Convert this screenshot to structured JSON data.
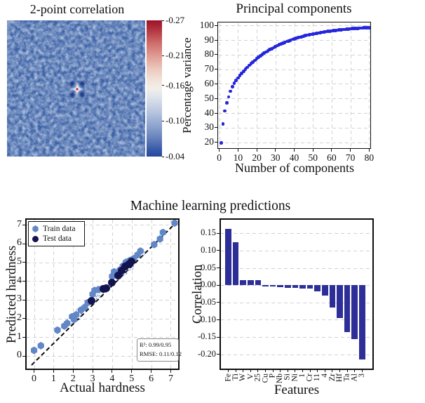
{
  "figure": {
    "titles": {
      "correlation": "2-point correlation",
      "pca": "Principal components",
      "ml": "Machine learning predictions"
    }
  },
  "heatmap": {
    "base_color": "#3e63a6",
    "center_dot_color": "#cf2b35",
    "colorbar": {
      "tick_labels": [
        "-0.27",
        "-0.21",
        "-0.16",
        "-0.10",
        "-0.04"
      ],
      "tick_positions": [
        0,
        0.26,
        0.478,
        0.739,
        1
      ],
      "top_color": "#9c1127",
      "mid_color": "#f2efe9",
      "bottom_color": "#26489c"
    }
  },
  "chart_data": [
    {
      "id": "principal-components",
      "type": "scatter",
      "title": "Principal components",
      "xlabel": "Number of components",
      "ylabel": "Percentage variance",
      "xlim": [
        -1,
        81
      ],
      "ylim": [
        15.5,
        102.5
      ],
      "xticks": [
        0,
        10,
        20,
        30,
        40,
        50,
        60,
        70,
        80
      ],
      "yticks": [
        20,
        30,
        40,
        50,
        60,
        70,
        80,
        90,
        100
      ],
      "grid": true,
      "marker_color": "#2525dd",
      "x": [
        1,
        2,
        3,
        4,
        5,
        6,
        7,
        8,
        9,
        10,
        11,
        12,
        13,
        14,
        15,
        16,
        17,
        18,
        19,
        20,
        21,
        22,
        23,
        24,
        25,
        26,
        27,
        28,
        29,
        30,
        31,
        32,
        33,
        34,
        35,
        36,
        37,
        38,
        39,
        40,
        41,
        42,
        43,
        44,
        45,
        46,
        47,
        48,
        49,
        50,
        51,
        52,
        53,
        54,
        55,
        56,
        57,
        58,
        59,
        60,
        61,
        62,
        63,
        64,
        65,
        66,
        67,
        68,
        69,
        70,
        71,
        72,
        73,
        74,
        75,
        76,
        77,
        78,
        79,
        80
      ],
      "y": [
        19.5,
        32.5,
        41.5,
        47.0,
        51.0,
        55.0,
        58.0,
        60.5,
        62.5,
        64.0,
        65.6,
        67.1,
        68.6,
        70.0,
        71.3,
        72.6,
        73.8,
        75.0,
        76.1,
        77.2,
        78.2,
        79.1,
        80.1,
        81.0,
        81.8,
        82.6,
        83.4,
        84.1,
        84.8,
        85.5,
        86.1,
        86.8,
        87.3,
        87.9,
        88.4,
        89.0,
        89.4,
        89.9,
        90.4,
        90.8,
        91.2,
        91.6,
        92.0,
        92.3,
        92.7,
        93.0,
        93.3,
        93.6,
        93.9,
        94.2,
        94.4,
        94.7,
        94.9,
        95.1,
        95.3,
        95.6,
        95.8,
        95.9,
        96.1,
        96.3,
        96.5,
        96.6,
        96.8,
        96.9,
        97.0,
        97.2,
        97.3,
        97.4,
        97.5,
        97.6,
        97.8,
        97.9,
        97.9,
        98.0,
        98.1,
        98.2,
        98.3,
        98.4,
        98.4,
        98.5
      ]
    },
    {
      "id": "ml-parity",
      "type": "scatter",
      "title": "Machine learning predictions",
      "xlabel": "Actual hardness",
      "ylabel": "Predicted hardness",
      "xlim": [
        -0.45,
        7.45
      ],
      "ylim": [
        -0.75,
        7.35
      ],
      "xticks": [
        0,
        1,
        2,
        3,
        4,
        5,
        6,
        7
      ],
      "yticks": [
        0,
        1,
        2,
        3,
        4,
        5,
        6,
        7
      ],
      "grid": true,
      "identity_line": {
        "x1": -0.12,
        "y1": -0.5,
        "x2": 7.35,
        "y2": 7.18
      },
      "legend": [
        {
          "label": "Train data",
          "marker": "hexagon",
          "color": "#6287c6"
        },
        {
          "label": "Test data",
          "marker": "circle",
          "color": "#13134f"
        }
      ],
      "annotation": {
        "line1": "R²: 0.99/0.95",
        "line2": "RMSE: 0.11/0.12"
      },
      "series": [
        {
          "name": "Train data",
          "style": "filled-hexagon",
          "color": "#6287c6",
          "points": [
            [
              0,
              0.3
            ],
            [
              0.35,
              0.55
            ],
            [
              1.2,
              1.38
            ],
            [
              1.55,
              1.6
            ],
            [
              1.7,
              1.75
            ],
            [
              1.95,
              2.1
            ],
            [
              2.05,
              1.95
            ],
            [
              2.15,
              2.2
            ],
            [
              2.4,
              2.45
            ],
            [
              2.6,
              2.6
            ],
            [
              2.75,
              2.85
            ],
            [
              3.0,
              3.3
            ],
            [
              3.1,
              3.5
            ],
            [
              3.3,
              3.55
            ],
            [
              3.5,
              3.6
            ],
            [
              4.0,
              4.25
            ],
            [
              4.1,
              4.5
            ],
            [
              4.4,
              4.6
            ],
            [
              4.55,
              4.8
            ],
            [
              4.7,
              5.0
            ],
            [
              4.9,
              5.1
            ],
            [
              5.1,
              5.2
            ],
            [
              5.3,
              5.4
            ],
            [
              5.45,
              5.6
            ],
            [
              6.15,
              5.95
            ],
            [
              6.45,
              6.25
            ],
            [
              6.6,
              6.6
            ],
            [
              7.2,
              7.1
            ]
          ]
        },
        {
          "name": "Train data outline",
          "style": "dashed-circle",
          "color": "#6287c6",
          "points": [
            [
              1.8,
              1.85
            ],
            [
              2.2,
              2.05
            ],
            [
              2.3,
              2.35
            ],
            [
              3.05,
              3.05
            ],
            [
              3.2,
              3.35
            ],
            [
              3.4,
              3.3
            ],
            [
              4.15,
              4.15
            ],
            [
              4.3,
              4.45
            ],
            [
              4.6,
              4.5
            ],
            [
              4.95,
              4.75
            ],
            [
              5.0,
              5.15
            ],
            [
              5.5,
              5.5
            ]
          ]
        },
        {
          "name": "Test data",
          "style": "filled-circle",
          "color": "#13134f",
          "points": [
            [
              2.95,
              2.95
            ],
            [
              3.55,
              3.6
            ],
            [
              3.7,
              3.62
            ],
            [
              4.0,
              3.92
            ],
            [
              4.3,
              4.3
            ],
            [
              4.5,
              4.55
            ],
            [
              4.65,
              4.8
            ],
            [
              4.85,
              4.9
            ],
            [
              5.0,
              5.05
            ]
          ]
        }
      ]
    },
    {
      "id": "feature-correlation",
      "type": "bar",
      "xlabel": "Features",
      "ylabel": "Correlation",
      "ylim": [
        -0.245,
        0.193
      ],
      "yticks": [
        0.15,
        0.1,
        0.05,
        0.0,
        -0.05,
        -0.1,
        -0.15,
        -0.2
      ],
      "ytick_labels": [
        "0.15",
        "0.10",
        "0.05",
        "0.00",
        "-0.05",
        "-0.10",
        "-0.15",
        "-0.20"
      ],
      "grid": true,
      "bar_color": "#2e2e99",
      "categories": [
        "Fe",
        "Ti",
        "W",
        "V",
        "25",
        "Cu",
        "P",
        "Nb",
        "Si",
        "Ni",
        "1",
        "Cr",
        "11",
        "4",
        "Zr",
        "Hf",
        "Ta",
        "Al",
        "3"
      ],
      "values": [
        0.163,
        0.125,
        0.015,
        0.015,
        0.014,
        -0.004,
        -0.004,
        -0.006,
        -0.007,
        -0.008,
        -0.009,
        -0.01,
        -0.018,
        -0.03,
        -0.065,
        -0.095,
        -0.135,
        -0.155,
        -0.215
      ]
    }
  ]
}
